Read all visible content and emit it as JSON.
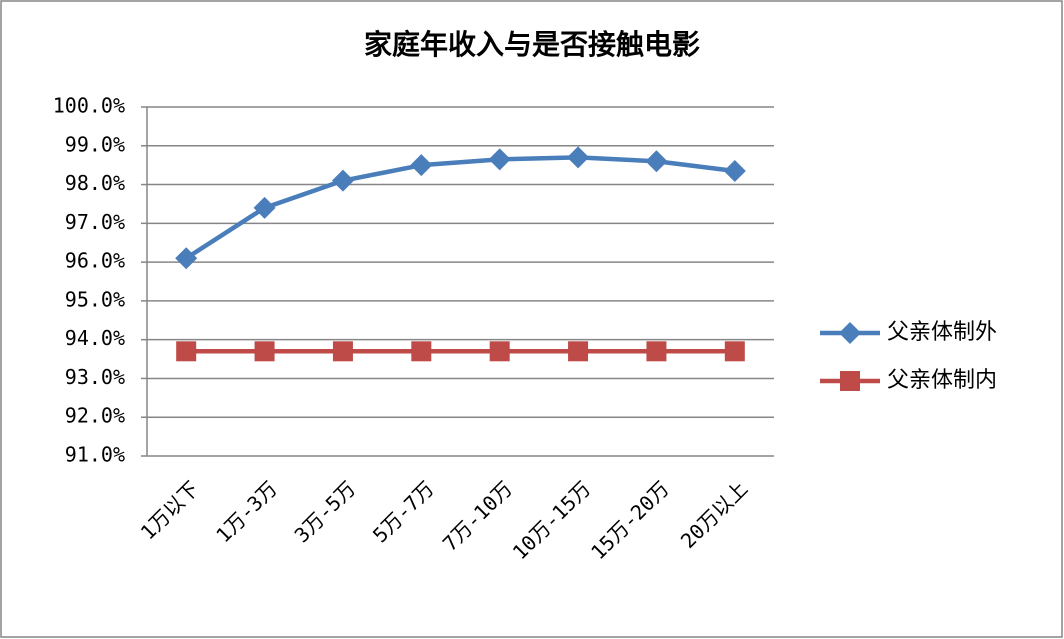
{
  "chart_data": {
    "type": "line",
    "title": "家庭年收入与是否接触电影",
    "categories": [
      "1万以下",
      "1万-3万",
      "3万-5万",
      "5万-7万",
      "7万-10万",
      "10万-15万",
      "15万-20万",
      "20万以上"
    ],
    "series": [
      {
        "name": "父亲体制外",
        "color": "#4a7ebb",
        "marker": "diamond",
        "values": [
          96.1,
          97.4,
          98.1,
          98.5,
          98.65,
          98.7,
          98.6,
          98.35
        ]
      },
      {
        "name": "父亲体制内",
        "color": "#be4b48",
        "marker": "square",
        "values": [
          93.7,
          93.7,
          93.7,
          93.7,
          93.7,
          93.7,
          93.7,
          93.7
        ]
      }
    ],
    "ylim": [
      91,
      100
    ],
    "yticks": [
      {
        "value": 91,
        "label": "91.0%"
      },
      {
        "value": 92,
        "label": "92.0%"
      },
      {
        "value": 93,
        "label": "93.0%"
      },
      {
        "value": 94,
        "label": "94.0%"
      },
      {
        "value": 95,
        "label": "95.0%"
      },
      {
        "value": 96,
        "label": "96.0%"
      },
      {
        "value": 97,
        "label": "97.0%"
      },
      {
        "value": 98,
        "label": "98.0%"
      },
      {
        "value": 99,
        "label": "99.0%"
      },
      {
        "value": 100,
        "label": "100.0%"
      }
    ],
    "grid": true,
    "legend": "right"
  }
}
